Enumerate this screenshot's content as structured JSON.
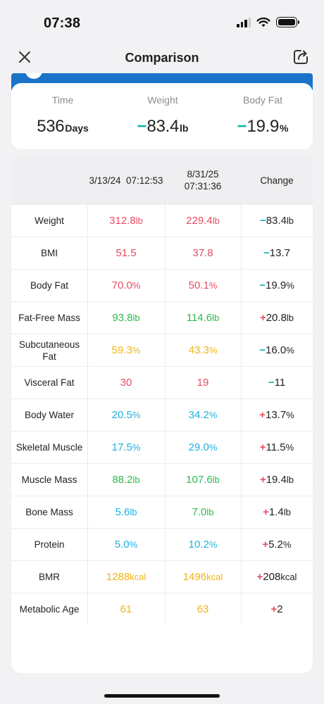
{
  "status_bar": {
    "time": "07:38"
  },
  "nav": {
    "title": "Comparison"
  },
  "summary": [
    {
      "label": "Time",
      "sign": "",
      "value": "536",
      "unit": "Days"
    },
    {
      "label": "Weight",
      "sign": "−",
      "value": "83.4",
      "unit": "lb"
    },
    {
      "label": "Body Fat",
      "sign": "−",
      "value": "19.9",
      "unit": "%"
    }
  ],
  "table": {
    "header": {
      "date_a": "3/13/24  07:12:53",
      "date_b": "8/31/25\n07:31:36",
      "change": "Change"
    },
    "rows": [
      {
        "name": "Weight",
        "a": "312.8",
        "a_unit": "lb",
        "a_color": "#e64c63",
        "b": "229.4",
        "b_unit": "lb",
        "b_color": "#e64c63",
        "sign": "−",
        "change": "83.4",
        "change_unit": "lb"
      },
      {
        "name": "BMI",
        "a": "51.5",
        "a_unit": "",
        "a_color": "#e64c63",
        "b": "37.8",
        "b_unit": "",
        "b_color": "#e64c63",
        "sign": "−",
        "change": "13.7",
        "change_unit": ""
      },
      {
        "name": "Body Fat",
        "a": "70.0",
        "a_unit": "%",
        "a_color": "#e64c63",
        "b": "50.1",
        "b_unit": "%",
        "b_color": "#e64c63",
        "sign": "−",
        "change": "19.9",
        "change_unit": "%"
      },
      {
        "name": "Fat-Free Mass",
        "a": "93.8",
        "a_unit": "lb",
        "a_color": "#2fb84f",
        "b": "114.6",
        "b_unit": "lb",
        "b_color": "#2fb84f",
        "sign": "+",
        "change": "20.8",
        "change_unit": "lb"
      },
      {
        "name": "Subcutaneous Fat",
        "a": "59.3",
        "a_unit": "%",
        "a_color": "#f0b415",
        "b": "43.3",
        "b_unit": "%",
        "b_color": "#f0b415",
        "sign": "−",
        "change": "16.0",
        "change_unit": "%"
      },
      {
        "name": "Visceral Fat",
        "a": "30",
        "a_unit": "",
        "a_color": "#e64c63",
        "b": "19",
        "b_unit": "",
        "b_color": "#e64c63",
        "sign": "−",
        "change": "11",
        "change_unit": ""
      },
      {
        "name": "Body Water",
        "a": "20.5",
        "a_unit": "%",
        "a_color": "#1fb1e0",
        "b": "34.2",
        "b_unit": "%",
        "b_color": "#1fb1e0",
        "sign": "+",
        "change": "13.7",
        "change_unit": "%"
      },
      {
        "name": "Skeletal Muscle",
        "a": "17.5",
        "a_unit": "%",
        "a_color": "#1fb1e0",
        "b": "29.0",
        "b_unit": "%",
        "b_color": "#1fb1e0",
        "sign": "+",
        "change": "11.5",
        "change_unit": "%"
      },
      {
        "name": "Muscle Mass",
        "a": "88.2",
        "a_unit": "lb",
        "a_color": "#2fb84f",
        "b": "107.6",
        "b_unit": "lb",
        "b_color": "#2fb84f",
        "sign": "+",
        "change": "19.4",
        "change_unit": "lb"
      },
      {
        "name": "Bone Mass",
        "a": "5.6",
        "a_unit": "lb",
        "a_color": "#1fb1e0",
        "b": "7.0",
        "b_unit": "lb",
        "b_color": "#2fb84f",
        "sign": "+",
        "change": "1.4",
        "change_unit": "lb"
      },
      {
        "name": "Protein",
        "a": "5.0",
        "a_unit": "%",
        "a_color": "#1fb1e0",
        "b": "10.2",
        "b_unit": "%",
        "b_color": "#1fb1e0",
        "sign": "+",
        "change": "5.2",
        "change_unit": "%"
      },
      {
        "name": "BMR",
        "a": "1288",
        "a_unit": "kcal",
        "a_color": "#f0b415",
        "b": "1496",
        "b_unit": "kcal",
        "b_color": "#f0b415",
        "sign": "+",
        "change": "208",
        "change_unit": "kcal"
      },
      {
        "name": "Metabolic Age",
        "a": "61",
        "a_unit": "",
        "a_color": "#f0b415",
        "b": "63",
        "b_unit": "",
        "b_color": "#f0b415",
        "sign": "+",
        "change": "2",
        "change_unit": ""
      }
    ]
  },
  "colors": {
    "decrease": "#12b4b0",
    "increase": "#e64c63",
    "header_bar": "#1a73c8"
  }
}
